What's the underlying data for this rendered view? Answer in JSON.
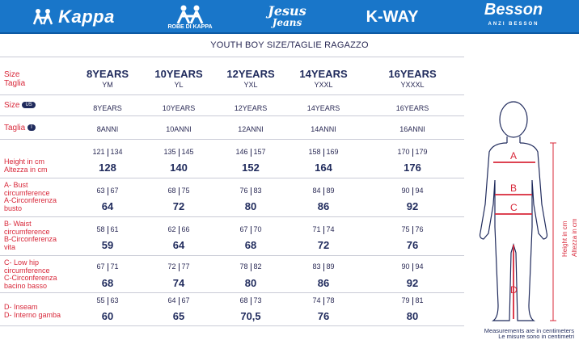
{
  "brands": {
    "kappa": "Kappa",
    "robe": "ROBE DI KAPPA",
    "jesus": "Jesus",
    "jeans": "Jeans",
    "kway": "K-WAY",
    "besson": "Besson",
    "besson_sub": "ANZI BESSON"
  },
  "colors": {
    "banner": "#1976c9",
    "accent_red": "#d8283a",
    "navy": "#1f2a5c"
  },
  "title": "YOUTH BOY SIZE/TAGLIE RAGAZZO",
  "row_labels": {
    "size": "Size",
    "taglia": "Taglia",
    "size_us": "Size",
    "us_badge": "US",
    "taglia_i": "Taglia",
    "i_badge": "I",
    "height": "Height in cm\nAltezza in cm",
    "bust": "A- Bust\ncircumference\nA-Circonferenza\nbusto",
    "waist": "B- Waist\ncircumference\nB-Circonferenza\nvita",
    "hip": "C- Low hip\ncircumference\nC-Circonferenza\nbacino basso",
    "inseam": "D- Inseam\nD- Interno gamba"
  },
  "columns": [
    {
      "header": "8YEARS",
      "taglia": "YM",
      "us": "8YEARS",
      "it": "8ANNI",
      "height": {
        "lo": "121",
        "hi": "134",
        "val": "128"
      },
      "bust": {
        "lo": "63",
        "hi": "67",
        "val": "64"
      },
      "waist": {
        "lo": "58",
        "hi": "61",
        "val": "59"
      },
      "hip": {
        "lo": "67",
        "hi": "71",
        "val": "68"
      },
      "inseam": {
        "lo": "55",
        "hi": "63",
        "val": "60"
      }
    },
    {
      "header": "10YEARS",
      "taglia": "YL",
      "us": "10YEARS",
      "it": "10ANNI",
      "height": {
        "lo": "135",
        "hi": "145",
        "val": "140"
      },
      "bust": {
        "lo": "68",
        "hi": "75",
        "val": "72"
      },
      "waist": {
        "lo": "62",
        "hi": "66",
        "val": "64"
      },
      "hip": {
        "lo": "72",
        "hi": "77",
        "val": "74"
      },
      "inseam": {
        "lo": "64",
        "hi": "67",
        "val": "65"
      }
    },
    {
      "header": "12YEARS",
      "taglia": "YXL",
      "us": "12YEARS",
      "it": "12ANNI",
      "height": {
        "lo": "146",
        "hi": "157",
        "val": "152"
      },
      "bust": {
        "lo": "76",
        "hi": "83",
        "val": "80"
      },
      "waist": {
        "lo": "67",
        "hi": "70",
        "val": "68"
      },
      "hip": {
        "lo": "78",
        "hi": "82",
        "val": "80"
      },
      "inseam": {
        "lo": "68",
        "hi": "73",
        "val": "70,5"
      }
    },
    {
      "header": "14YEARS",
      "taglia": "YXXL",
      "us": "14YEARS",
      "it": "14ANNI",
      "height": {
        "lo": "158",
        "hi": "169",
        "val": "164"
      },
      "bust": {
        "lo": "84",
        "hi": "89",
        "val": "86"
      },
      "waist": {
        "lo": "71",
        "hi": "74",
        "val": "72"
      },
      "hip": {
        "lo": "83",
        "hi": "89",
        "val": "86"
      },
      "inseam": {
        "lo": "74",
        "hi": "78",
        "val": "76"
      }
    },
    {
      "header": "16YEARS",
      "taglia": "YXXXL",
      "us": "16YEARS",
      "it": "16ANNI",
      "height": {
        "lo": "170",
        "hi": "179",
        "val": "176"
      },
      "bust": {
        "lo": "90",
        "hi": "94",
        "val": "92"
      },
      "waist": {
        "lo": "75",
        "hi": "76",
        "val": "76"
      },
      "hip": {
        "lo": "90",
        "hi": "94",
        "val": "92"
      },
      "inseam": {
        "lo": "79",
        "hi": "81",
        "val": "80"
      }
    }
  ],
  "figure": {
    "mark_a": "A",
    "mark_b": "B",
    "mark_c": "C",
    "mark_d": "D",
    "height_en": "Height in cm",
    "height_it": "Altezza in cm"
  },
  "note": {
    "line1": "Measurements are in centimeters",
    "line2": "Le misure sono in centimetri"
  }
}
